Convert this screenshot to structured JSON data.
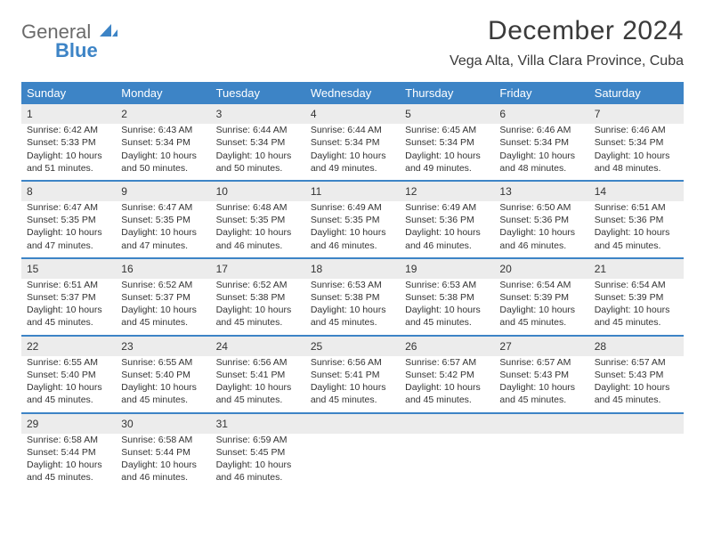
{
  "brand": {
    "line1": "General",
    "line2": "Blue"
  },
  "title": "December 2024",
  "location": "Vega Alta, Villa Clara Province, Cuba",
  "colors": {
    "header_bg": "#3d84c6",
    "header_text": "#ffffff",
    "daynum_bg": "#ececec",
    "row_border": "#3d84c6",
    "body_text": "#333333",
    "page_bg": "#ffffff",
    "logo_grey": "#6b6b6b",
    "logo_blue": "#3d84c6"
  },
  "typography": {
    "title_size": 30,
    "subtitle_size": 16,
    "dayheader_size": 13,
    "daynum_size": 12,
    "cell_size": 10.5
  },
  "day_headers": [
    "Sunday",
    "Monday",
    "Tuesday",
    "Wednesday",
    "Thursday",
    "Friday",
    "Saturday"
  ],
  "weeks": [
    [
      {
        "n": "1",
        "sr": "6:42 AM",
        "ss": "5:33 PM",
        "dl": "10 hours and 51 minutes."
      },
      {
        "n": "2",
        "sr": "6:43 AM",
        "ss": "5:34 PM",
        "dl": "10 hours and 50 minutes."
      },
      {
        "n": "3",
        "sr": "6:44 AM",
        "ss": "5:34 PM",
        "dl": "10 hours and 50 minutes."
      },
      {
        "n": "4",
        "sr": "6:44 AM",
        "ss": "5:34 PM",
        "dl": "10 hours and 49 minutes."
      },
      {
        "n": "5",
        "sr": "6:45 AM",
        "ss": "5:34 PM",
        "dl": "10 hours and 49 minutes."
      },
      {
        "n": "6",
        "sr": "6:46 AM",
        "ss": "5:34 PM",
        "dl": "10 hours and 48 minutes."
      },
      {
        "n": "7",
        "sr": "6:46 AM",
        "ss": "5:34 PM",
        "dl": "10 hours and 48 minutes."
      }
    ],
    [
      {
        "n": "8",
        "sr": "6:47 AM",
        "ss": "5:35 PM",
        "dl": "10 hours and 47 minutes."
      },
      {
        "n": "9",
        "sr": "6:47 AM",
        "ss": "5:35 PM",
        "dl": "10 hours and 47 minutes."
      },
      {
        "n": "10",
        "sr": "6:48 AM",
        "ss": "5:35 PM",
        "dl": "10 hours and 46 minutes."
      },
      {
        "n": "11",
        "sr": "6:49 AM",
        "ss": "5:35 PM",
        "dl": "10 hours and 46 minutes."
      },
      {
        "n": "12",
        "sr": "6:49 AM",
        "ss": "5:36 PM",
        "dl": "10 hours and 46 minutes."
      },
      {
        "n": "13",
        "sr": "6:50 AM",
        "ss": "5:36 PM",
        "dl": "10 hours and 46 minutes."
      },
      {
        "n": "14",
        "sr": "6:51 AM",
        "ss": "5:36 PM",
        "dl": "10 hours and 45 minutes."
      }
    ],
    [
      {
        "n": "15",
        "sr": "6:51 AM",
        "ss": "5:37 PM",
        "dl": "10 hours and 45 minutes."
      },
      {
        "n": "16",
        "sr": "6:52 AM",
        "ss": "5:37 PM",
        "dl": "10 hours and 45 minutes."
      },
      {
        "n": "17",
        "sr": "6:52 AM",
        "ss": "5:38 PM",
        "dl": "10 hours and 45 minutes."
      },
      {
        "n": "18",
        "sr": "6:53 AM",
        "ss": "5:38 PM",
        "dl": "10 hours and 45 minutes."
      },
      {
        "n": "19",
        "sr": "6:53 AM",
        "ss": "5:38 PM",
        "dl": "10 hours and 45 minutes."
      },
      {
        "n": "20",
        "sr": "6:54 AM",
        "ss": "5:39 PM",
        "dl": "10 hours and 45 minutes."
      },
      {
        "n": "21",
        "sr": "6:54 AM",
        "ss": "5:39 PM",
        "dl": "10 hours and 45 minutes."
      }
    ],
    [
      {
        "n": "22",
        "sr": "6:55 AM",
        "ss": "5:40 PM",
        "dl": "10 hours and 45 minutes."
      },
      {
        "n": "23",
        "sr": "6:55 AM",
        "ss": "5:40 PM",
        "dl": "10 hours and 45 minutes."
      },
      {
        "n": "24",
        "sr": "6:56 AM",
        "ss": "5:41 PM",
        "dl": "10 hours and 45 minutes."
      },
      {
        "n": "25",
        "sr": "6:56 AM",
        "ss": "5:41 PM",
        "dl": "10 hours and 45 minutes."
      },
      {
        "n": "26",
        "sr": "6:57 AM",
        "ss": "5:42 PM",
        "dl": "10 hours and 45 minutes."
      },
      {
        "n": "27",
        "sr": "6:57 AM",
        "ss": "5:43 PM",
        "dl": "10 hours and 45 minutes."
      },
      {
        "n": "28",
        "sr": "6:57 AM",
        "ss": "5:43 PM",
        "dl": "10 hours and 45 minutes."
      }
    ],
    [
      {
        "n": "29",
        "sr": "6:58 AM",
        "ss": "5:44 PM",
        "dl": "10 hours and 45 minutes."
      },
      {
        "n": "30",
        "sr": "6:58 AM",
        "ss": "5:44 PM",
        "dl": "10 hours and 46 minutes."
      },
      {
        "n": "31",
        "sr": "6:59 AM",
        "ss": "5:45 PM",
        "dl": "10 hours and 46 minutes."
      },
      null,
      null,
      null,
      null
    ]
  ],
  "labels": {
    "sunrise": "Sunrise: ",
    "sunset": "Sunset: ",
    "daylight": "Daylight: "
  }
}
